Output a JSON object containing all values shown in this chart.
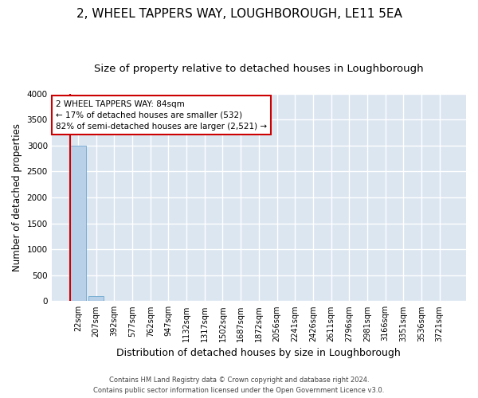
{
  "title": "2, WHEEL TAPPERS WAY, LOUGHBOROUGH, LE11 5EA",
  "subtitle": "Size of property relative to detached houses in Loughborough",
  "xlabel": "Distribution of detached houses by size in Loughborough",
  "ylabel": "Number of detached properties",
  "footer_line1": "Contains HM Land Registry data © Crown copyright and database right 2024.",
  "footer_line2": "Contains public sector information licensed under the Open Government Licence v3.0.",
  "categories": [
    "22sqm",
    "207sqm",
    "392sqm",
    "577sqm",
    "762sqm",
    "947sqm",
    "1132sqm",
    "1317sqm",
    "1502sqm",
    "1687sqm",
    "1872sqm",
    "2056sqm",
    "2241sqm",
    "2426sqm",
    "2611sqm",
    "2796sqm",
    "2981sqm",
    "3166sqm",
    "3351sqm",
    "3536sqm",
    "3721sqm"
  ],
  "values": [
    3000,
    100,
    0,
    0,
    0,
    0,
    0,
    0,
    0,
    0,
    0,
    0,
    0,
    0,
    0,
    0,
    0,
    0,
    0,
    0,
    0
  ],
  "bar_color": "#b8d0e8",
  "bar_edge_color": "#7aafd4",
  "background_color": "#dce6f1",
  "grid_color": "#ffffff",
  "annotation_line1": "2 WHEEL TAPPERS WAY: 84sqm",
  "annotation_line2": "← 17% of detached houses are smaller (532)",
  "annotation_line3": "82% of semi-detached houses are larger (2,521) →",
  "annotation_box_edgecolor": "#cc0000",
  "property_line_color": "#cc0000",
  "ylim": [
    0,
    4000
  ],
  "yticks": [
    0,
    500,
    1000,
    1500,
    2000,
    2500,
    3000,
    3500,
    4000
  ],
  "title_fontsize": 11,
  "subtitle_fontsize": 9.5,
  "xlabel_fontsize": 9,
  "ylabel_fontsize": 8.5,
  "tick_fontsize": 7.5,
  "xtick_fontsize": 7
}
